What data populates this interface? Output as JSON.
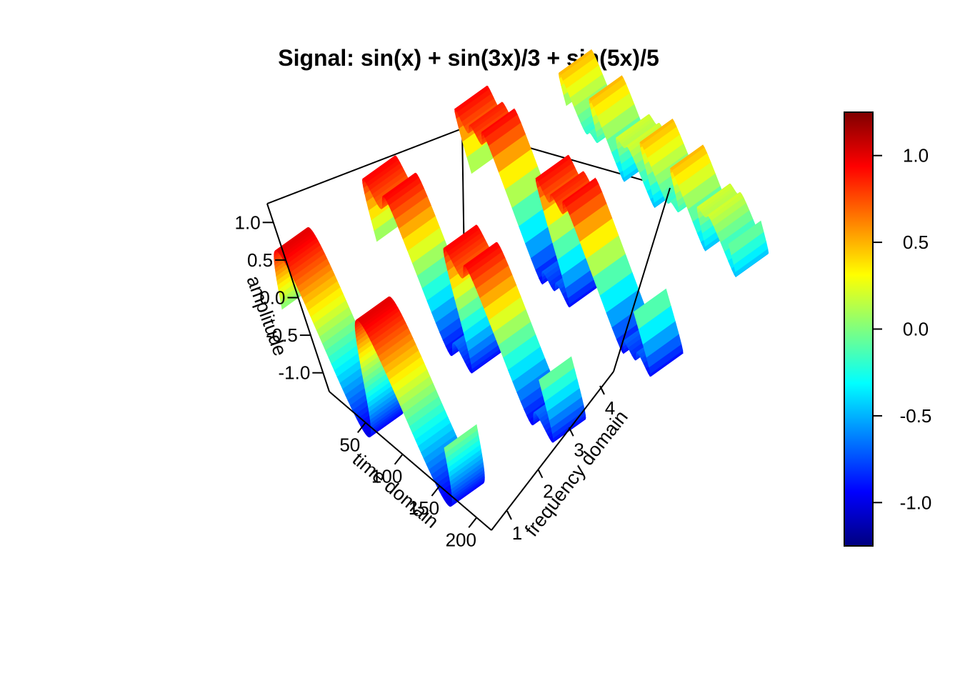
{
  "chart_data": {
    "type": "surface-3d",
    "title": "Signal: sin(x) + sin(3x)/3 + sin(5x)/5",
    "xlabel": "time domain",
    "ylabel": "frequency domain",
    "zlabel": "amplitude",
    "x_ticks": [
      "50",
      "100",
      "150",
      "200"
    ],
    "y_ticks": [
      "1",
      "2",
      "3",
      "4"
    ],
    "z_ticks": [
      "1.0",
      "0.5",
      "0.0",
      "-0.5",
      "-1.0"
    ],
    "xlim": [
      1,
      220
    ],
    "ylim": [
      1,
      4
    ],
    "zlim": [
      -1.25,
      1.25
    ],
    "colorbar_ticks": [
      "1.0",
      "0.5",
      "0.0",
      "-0.5",
      "-1.0"
    ],
    "colorbar_range": [
      -1.25,
      1.25
    ],
    "colormap": [
      "#00007F",
      "#0000FF",
      "#007FFF",
      "#00FFFF",
      "#7FFF7F",
      "#FFFF00",
      "#FF7F00",
      "#FF0000",
      "#7F0000"
    ],
    "series": [
      {
        "frequency": 1,
        "formula": "sin(x)"
      },
      {
        "frequency": 2,
        "formula": "sin(x) + sin(3x)/3"
      },
      {
        "frequency": 3,
        "formula": "sin(x) + sin(3x)/3 + sin(5x)/5"
      },
      {
        "frequency": 4,
        "formula": "sin(3x)/3 + sin(5x)/5"
      }
    ]
  }
}
